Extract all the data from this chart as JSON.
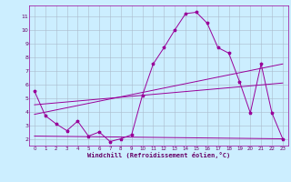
{
  "bg_color": "#cceeff",
  "line_color": "#990099",
  "grid_color": "#aabbcc",
  "xlabel": "Windchill (Refroidissement éolien,°C)",
  "xlabel_color": "#660066",
  "tick_color": "#660066",
  "xlim": [
    -0.5,
    23.5
  ],
  "ylim": [
    1.5,
    11.8
  ],
  "yticks": [
    2,
    3,
    4,
    5,
    6,
    7,
    8,
    9,
    10,
    11
  ],
  "xticks": [
    0,
    1,
    2,
    3,
    4,
    5,
    6,
    7,
    8,
    9,
    10,
    11,
    12,
    13,
    14,
    15,
    16,
    17,
    18,
    19,
    20,
    21,
    22,
    23
  ],
  "main_x": [
    0,
    1,
    2,
    3,
    4,
    5,
    6,
    7,
    8,
    9,
    10,
    11,
    12,
    13,
    14,
    15,
    16,
    17,
    18,
    19,
    20,
    21,
    22,
    23
  ],
  "main_y": [
    5.5,
    3.7,
    3.1,
    2.6,
    3.3,
    2.2,
    2.5,
    1.8,
    2.0,
    2.3,
    5.2,
    7.5,
    8.7,
    10.0,
    11.2,
    11.3,
    10.5,
    8.7,
    8.3,
    6.2,
    3.9,
    7.5,
    3.9,
    2.0
  ],
  "line1_x": [
    0,
    23
  ],
  "line1_y": [
    3.8,
    7.5
  ],
  "line2_x": [
    0,
    23
  ],
  "line2_y": [
    4.5,
    6.1
  ],
  "line3_x": [
    0,
    23
  ],
  "line3_y": [
    2.2,
    2.0
  ]
}
